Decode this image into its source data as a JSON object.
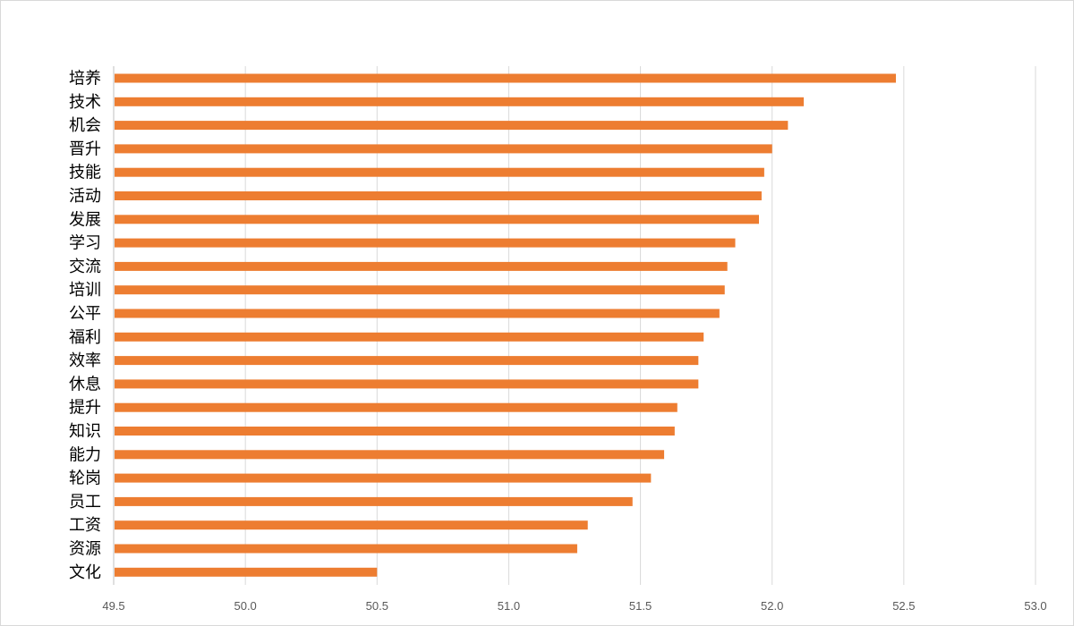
{
  "chart_data": {
    "type": "bar",
    "orientation": "horizontal",
    "categories": [
      "培养",
      "技术",
      "机会",
      "晋升",
      "技能",
      "活动",
      "发展",
      "学习",
      "交流",
      "培训",
      "公平",
      "福利",
      "效率",
      "休息",
      "提升",
      "知识",
      "能力",
      "轮岗",
      "员工",
      "工资",
      "资源",
      "文化"
    ],
    "values": [
      52.47,
      52.12,
      52.06,
      52.0,
      51.97,
      51.96,
      51.95,
      51.86,
      51.83,
      51.82,
      51.8,
      51.74,
      51.72,
      51.72,
      51.64,
      51.63,
      51.59,
      51.54,
      51.47,
      51.3,
      51.26,
      50.5
    ],
    "x_ticks": [
      "49.5",
      "50.0",
      "50.5",
      "51.0",
      "51.5",
      "52.0",
      "52.5",
      "53.0"
    ],
    "xlim": [
      49.5,
      53.0
    ],
    "title": "",
    "xlabel": "",
    "ylabel": "",
    "grid": "vertical",
    "legend": "none",
    "bar_color": "#ed7d31"
  }
}
